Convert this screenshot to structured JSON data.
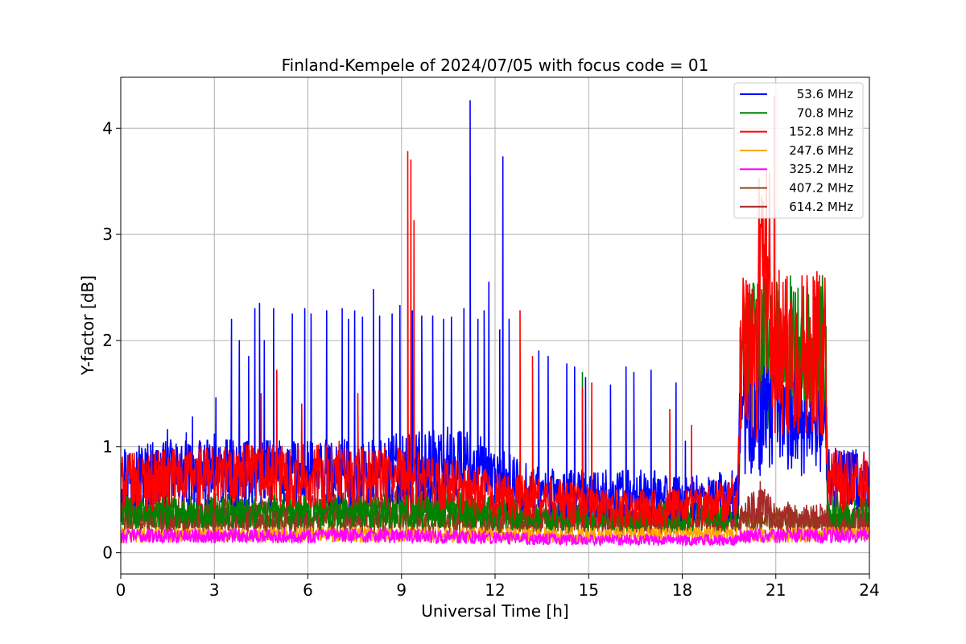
{
  "chart_data": {
    "type": "line",
    "title": "Finland-Kempele of 2024/07/05 with focus code = 01",
    "xlabel": "Universal Time [h]",
    "ylabel": "Y-factor [dB]",
    "xlim": [
      0,
      24
    ],
    "ylim": [
      -0.2,
      4.48
    ],
    "xticks": [
      0,
      3,
      6,
      9,
      12,
      15,
      18,
      21,
      24
    ],
    "yticks": [
      0,
      1,
      2,
      3,
      4
    ],
    "grid": true,
    "legend_position": "top-right",
    "series": [
      {
        "name": "53.6 MHz",
        "color": "#0000ff",
        "base_profile": [
          [
            0,
            0.75
          ],
          [
            2,
            0.75
          ],
          [
            4,
            0.75
          ],
          [
            8,
            0.75
          ],
          [
            9,
            0.8
          ],
          [
            11,
            0.85
          ],
          [
            12,
            0.7
          ],
          [
            13,
            0.6
          ],
          [
            14,
            0.55
          ],
          [
            17,
            0.55
          ],
          [
            18,
            0.5
          ],
          [
            19.8,
            0.55
          ],
          [
            19.85,
            1.25
          ],
          [
            22.6,
            1.25
          ],
          [
            22.65,
            0.7
          ],
          [
            24,
            0.7
          ]
        ],
        "spikes": [
          [
            1.5,
            1.16
          ],
          [
            2.1,
            1.13
          ],
          [
            2.3,
            1.28
          ],
          [
            3.0,
            1.12
          ],
          [
            3.05,
            1.46
          ],
          [
            3.55,
            2.2
          ],
          [
            3.8,
            2.0
          ],
          [
            4.1,
            1.85
          ],
          [
            4.3,
            2.3
          ],
          [
            4.45,
            2.35
          ],
          [
            4.6,
            2.0
          ],
          [
            4.9,
            2.3
          ],
          [
            5.5,
            2.25
          ],
          [
            5.9,
            2.3
          ],
          [
            6.1,
            2.25
          ],
          [
            6.6,
            2.28
          ],
          [
            7.1,
            2.3
          ],
          [
            7.3,
            2.2
          ],
          [
            7.5,
            2.28
          ],
          [
            7.75,
            2.22
          ],
          [
            8.1,
            2.48
          ],
          [
            8.3,
            2.23
          ],
          [
            8.7,
            2.25
          ],
          [
            8.95,
            2.33
          ],
          [
            9.35,
            2.28
          ],
          [
            9.65,
            2.23
          ],
          [
            10.0,
            2.23
          ],
          [
            10.35,
            2.2
          ],
          [
            10.6,
            2.22
          ],
          [
            11.0,
            2.3
          ],
          [
            11.2,
            4.26
          ],
          [
            11.45,
            2.2
          ],
          [
            11.65,
            2.28
          ],
          [
            11.8,
            2.55
          ],
          [
            12.15,
            2.1
          ],
          [
            12.25,
            3.73
          ],
          [
            12.45,
            2.2
          ],
          [
            13.4,
            1.9
          ],
          [
            13.7,
            1.85
          ],
          [
            14.3,
            1.78
          ],
          [
            14.55,
            1.75
          ],
          [
            14.9,
            1.65
          ],
          [
            15.7,
            1.58
          ],
          [
            16.2,
            1.75
          ],
          [
            16.45,
            1.7
          ],
          [
            17.0,
            1.72
          ],
          [
            17.8,
            1.6
          ],
          [
            18.1,
            1.05
          ]
        ]
      },
      {
        "name": "70.8 MHz",
        "color": "#008000",
        "base_profile": [
          [
            0,
            0.4
          ],
          [
            12,
            0.4
          ],
          [
            14,
            0.35
          ],
          [
            19.8,
            0.35
          ],
          [
            19.85,
            1.85
          ],
          [
            22.6,
            1.85
          ],
          [
            22.65,
            0.4
          ],
          [
            24,
            0.4
          ]
        ],
        "spikes": [
          [
            14.8,
            1.7
          ],
          [
            20.8,
            2.0
          ]
        ]
      },
      {
        "name": "152.8 MHz",
        "color": "#ff0000",
        "base_profile": [
          [
            0,
            0.65
          ],
          [
            2.4,
            0.72
          ],
          [
            3,
            0.72
          ],
          [
            6,
            0.72
          ],
          [
            9,
            0.7
          ],
          [
            11,
            0.6
          ],
          [
            12.5,
            0.52
          ],
          [
            14,
            0.5
          ],
          [
            15.5,
            0.42
          ],
          [
            18,
            0.42
          ],
          [
            19.5,
            0.5
          ],
          [
            19.8,
            0.6
          ],
          [
            19.85,
            1.9
          ],
          [
            20.4,
            1.75
          ],
          [
            20.5,
            2.9
          ],
          [
            20.8,
            2.65
          ],
          [
            20.85,
            1.9
          ],
          [
            22.6,
            1.9
          ],
          [
            22.65,
            0.68
          ],
          [
            24,
            0.68
          ]
        ],
        "spikes": [
          [
            4.5,
            1.5
          ],
          [
            5.0,
            1.72
          ],
          [
            5.8,
            1.4
          ],
          [
            7.0,
            1.05
          ],
          [
            7.6,
            1.5
          ],
          [
            9.2,
            3.78
          ],
          [
            9.3,
            3.7
          ],
          [
            9.4,
            3.13
          ],
          [
            12.8,
            2.28
          ],
          [
            13.2,
            1.85
          ],
          [
            14.8,
            1.55
          ],
          [
            15.1,
            1.6
          ],
          [
            17.6,
            1.35
          ],
          [
            18.3,
            1.2
          ],
          [
            20.7,
            3.6
          ],
          [
            20.95,
            4.3
          ],
          [
            22.2,
            2.6
          ]
        ]
      },
      {
        "name": "247.6 MHz",
        "color": "#ffa500",
        "base_profile": [
          [
            0,
            0.17
          ],
          [
            24,
            0.17
          ]
        ],
        "spikes": []
      },
      {
        "name": "325.2 MHz",
        "color": "#ff00ff",
        "base_profile": [
          [
            0,
            0.16
          ],
          [
            9,
            0.16
          ],
          [
            15,
            0.12
          ],
          [
            19.8,
            0.12
          ],
          [
            19.85,
            0.16
          ],
          [
            24,
            0.16
          ]
        ],
        "spikes": []
      },
      {
        "name": "407.2 MHz",
        "color": "#8b4513",
        "base_profile": [
          [
            0,
            0.3
          ],
          [
            24,
            0.3
          ]
        ],
        "spikes": []
      },
      {
        "name": "614.2 MHz",
        "color": "#a52a2a",
        "base_profile": [
          [
            0,
            0.38
          ],
          [
            4,
            0.36
          ],
          [
            8,
            0.42
          ],
          [
            10,
            0.48
          ],
          [
            11,
            0.4
          ],
          [
            12,
            0.35
          ],
          [
            15,
            0.32
          ],
          [
            19.8,
            0.32
          ],
          [
            20.5,
            0.45
          ],
          [
            21,
            0.35
          ],
          [
            24,
            0.3
          ]
        ],
        "spikes": [
          [
            2.2,
            0.62
          ],
          [
            20.5,
            0.67
          ]
        ]
      }
    ]
  }
}
